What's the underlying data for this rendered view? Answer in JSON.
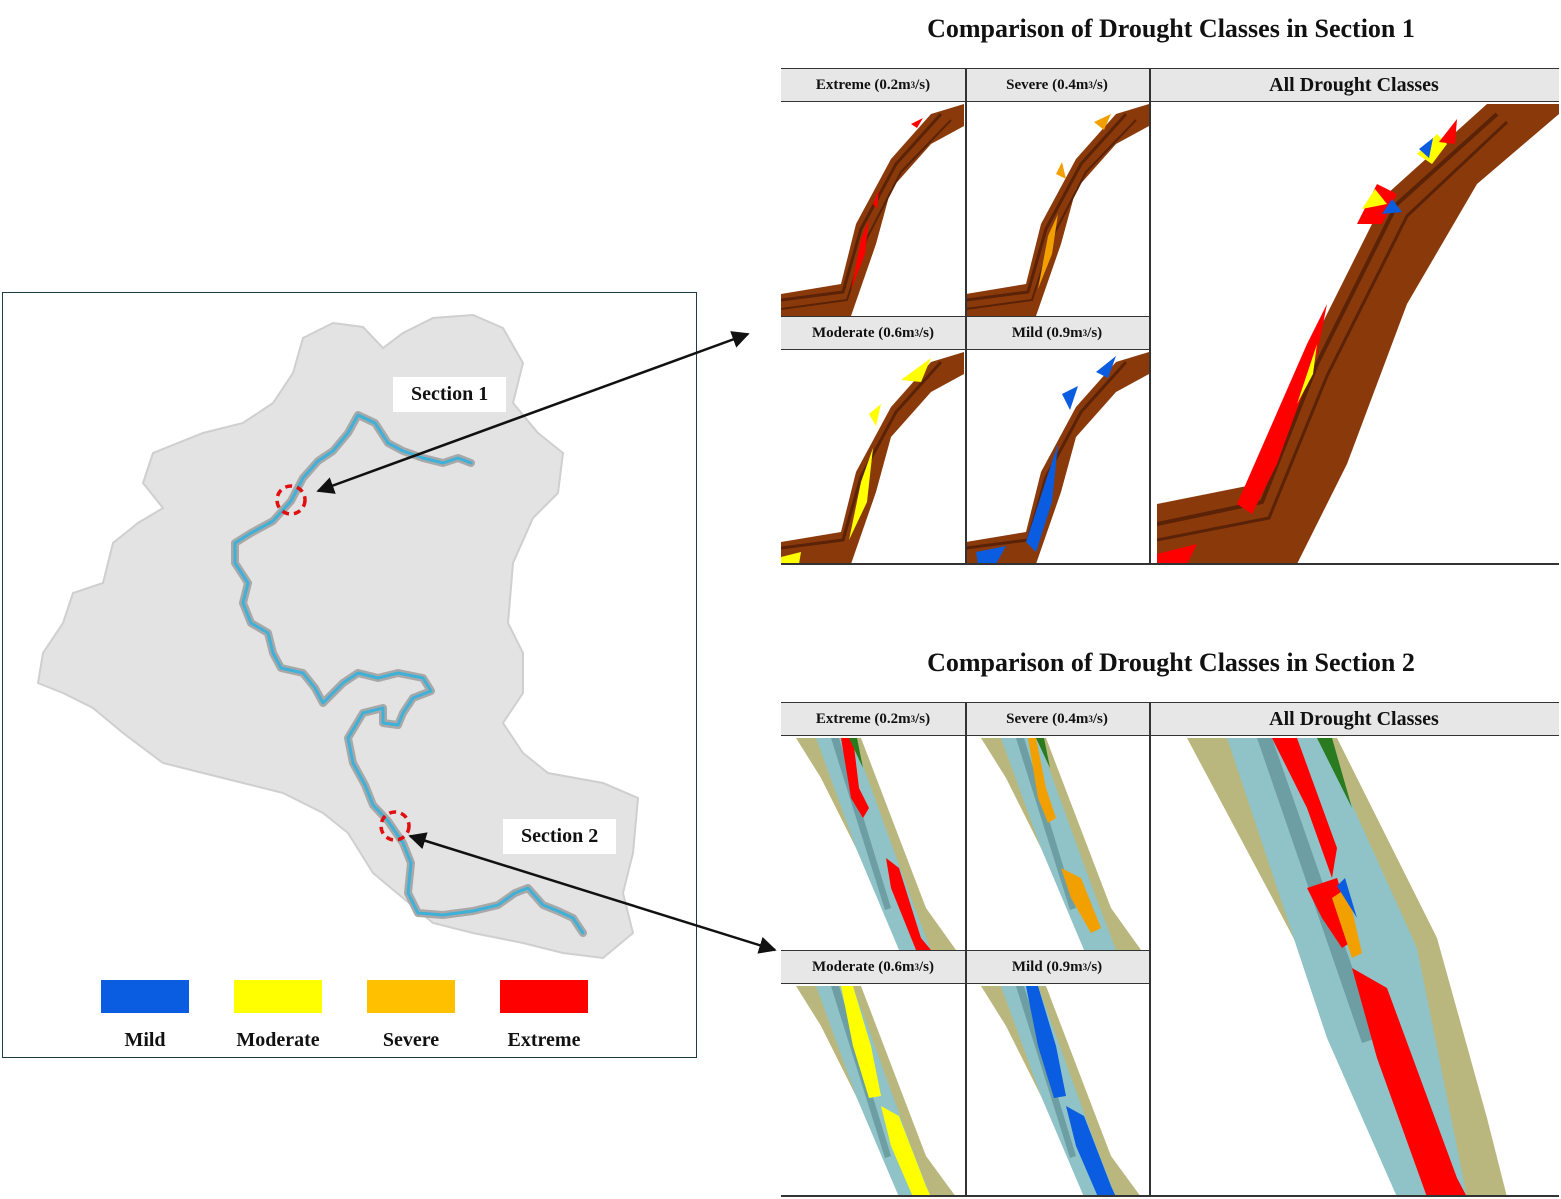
{
  "map": {
    "section1_label": "Section 1",
    "section2_label": "Section 2",
    "legend": [
      {
        "label": "Mild",
        "color": "#0a5ce0"
      },
      {
        "label": "Moderate",
        "color": "#ffff00"
      },
      {
        "label": "Severe",
        "color": "#ffc000"
      },
      {
        "label": "Extreme",
        "color": "#ff0000"
      }
    ]
  },
  "section1": {
    "title": "Comparison of Drought Classes in Section 1",
    "extreme_label": "Extreme (0.2m",
    "severe_label": "Severe (0.4m",
    "moderate_label": "Moderate (0.6m",
    "mild_label": "Mild (0.9m",
    "unit_suffix": "/s)",
    "unit_exp": "3",
    "all_label": "All Drought Classes"
  },
  "section2": {
    "title": "Comparison of Drought Classes in Section 2",
    "extreme_label": "Extreme (0.2m",
    "severe_label": "Severe (0.4m",
    "moderate_label": "Moderate (0.6m",
    "mild_label": "Mild (0.9m",
    "unit_suffix": "/s)",
    "unit_exp": "3",
    "all_label": "All Drought Classes"
  },
  "colors": {
    "mild": "#0a5ce0",
    "moderate": "#ffff00",
    "severe": "#f2a000",
    "extreme": "#ff0000",
    "terrain_brown": "#8a3a0a",
    "terrain_dark": "#5a2206",
    "bank_olive": "#b9b77e",
    "water_teal": "#8fc3c7",
    "river_blue": "#3fb0d8",
    "basin_gray": "#e3e3e3",
    "marker_red": "#e01010"
  }
}
